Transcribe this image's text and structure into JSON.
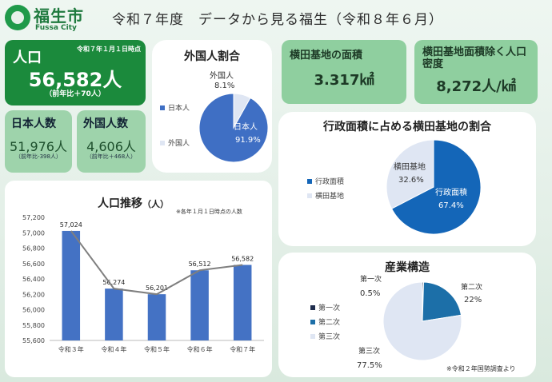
{
  "header": {
    "logo_text": "福生市",
    "logo_sub": "Fussa City",
    "title": "令和７年度　データから見る福生（令和８年６月）"
  },
  "population": {
    "date": "令和７年１月１日時点",
    "label": "人口",
    "value": "56,582人",
    "note": "（前年比＋70人）"
  },
  "japanese": {
    "label": "日本人数",
    "value": "51,976人",
    "note": "（前年比-398人）"
  },
  "foreign": {
    "label": "外国人数",
    "value": "4,606人",
    "note": "（前年比＋468人）"
  },
  "base_area": {
    "label": "横田基地の面積",
    "value": "3.317㎢"
  },
  "density": {
    "label": "横田基地面積除く人口密度",
    "value": "8,272人/㎢"
  },
  "chart_data": [
    {
      "type": "pie",
      "title": "外国人割合",
      "labels": [
        "日本人",
        "外国人"
      ],
      "values": [
        91.9,
        8.1
      ],
      "value_labels": [
        "91.9%",
        "8.1%"
      ],
      "legend": "left",
      "colors": [
        "#3f6fc4",
        "#dfe6f3"
      ]
    },
    {
      "type": "pie",
      "title": "行政面積に占める横田基地の割合",
      "labels": [
        "行政面積",
        "横田基地"
      ],
      "values": [
        67.4,
        32.6
      ],
      "value_labels": [
        "67.4%",
        "32.6%"
      ],
      "legend": "left",
      "colors": [
        "#1466b8",
        "#dfe6f3"
      ]
    },
    {
      "type": "bar",
      "title": "人口推移",
      "title_unit": "（人）",
      "note": "※各年１月１日時点の人数",
      "categories": [
        "令和３年",
        "令和４年",
        "令和５年",
        "令和６年",
        "令和７年"
      ],
      "values": [
        57024,
        56274,
        56201,
        56512,
        56582
      ],
      "value_labels": [
        "57,024",
        "56,274",
        "56,201",
        "56,512",
        "56,582"
      ],
      "ylim": [
        55600,
        57200
      ],
      "yticks": [
        "55,600",
        "55,800",
        "56,000",
        "56,200",
        "56,400",
        "56,600",
        "56,800",
        "57,000",
        "57,200"
      ],
      "overlay_line": true,
      "colors": [
        "#4472c4",
        "#7f7f7f"
      ]
    },
    {
      "type": "pie",
      "title": "産業構造",
      "labels": [
        "第一次",
        "第二次",
        "第三次"
      ],
      "values": [
        0.5,
        22,
        77.5
      ],
      "value_labels": [
        "0.5%",
        "22%",
        "77.5%"
      ],
      "legend": "left",
      "note": "※令和２年国勢調査より",
      "colors": [
        "#1f2d4d",
        "#1c6fa8",
        "#dfe6f3"
      ]
    }
  ]
}
